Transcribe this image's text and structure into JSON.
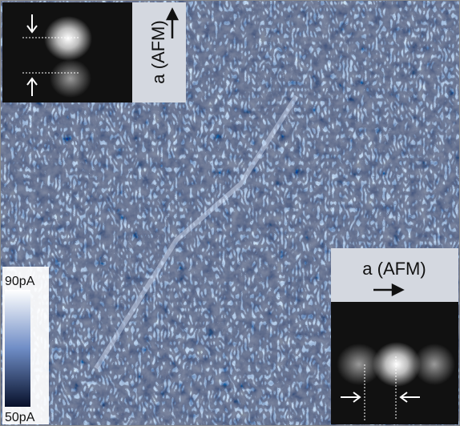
{
  "insets": {
    "top_left_label": "a (AFM)",
    "bottom_right_label": "a (AFM)"
  },
  "colorbar": {
    "max_label": "90pA",
    "min_label": "50pA"
  }
}
